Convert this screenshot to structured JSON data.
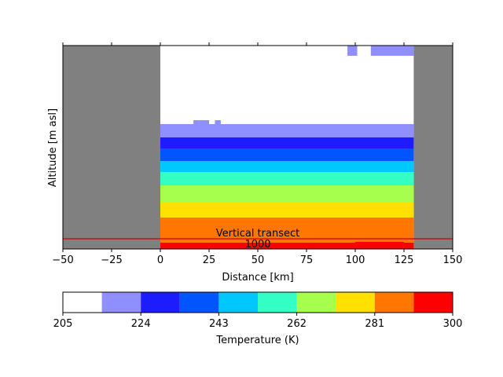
{
  "chart_data": [
    {
      "type": "heatmap",
      "title": "",
      "xlabel": "Distance [km]",
      "ylabel": "Altitude [m asl]",
      "xlim": [
        -50,
        150
      ],
      "x_ticks": [
        "−50",
        "−25",
        "0",
        "25",
        "50",
        "75",
        "100",
        "125",
        "150"
      ],
      "x_tick_values": [
        -50,
        -25,
        0,
        25,
        50,
        75,
        100,
        125,
        150
      ],
      "y_ticks": [],
      "data_extent_km": [
        0,
        130
      ],
      "nodata_color": "#808080",
      "bands_bottom_to_top": [
        {
          "temperature_range_K": [
            290.5,
            300
          ],
          "color": "#ff0000",
          "note": "thin surface strip"
        },
        {
          "temperature_range_K": [
            281,
            290.5
          ],
          "color": "#ff7700"
        },
        {
          "temperature_range_K": [
            271.5,
            281
          ],
          "color": "#ffe000"
        },
        {
          "temperature_range_K": [
            262,
            271.5
          ],
          "color": "#a6ff4d"
        },
        {
          "temperature_range_K": [
            252.5,
            262
          ],
          "color": "#33ffc4"
        },
        {
          "temperature_range_K": [
            243,
            252.5
          ],
          "color": "#00c8ff"
        },
        {
          "temperature_range_K": [
            233.5,
            243
          ],
          "color": "#0055ff"
        },
        {
          "temperature_range_K": [
            224,
            233.5
          ],
          "color": "#1c1cff"
        },
        {
          "temperature_range_K": [
            214.5,
            224
          ],
          "color": "#8f8fff"
        },
        {
          "temperature_range_K": [
            205,
            214.5
          ],
          "color": "#ffffff"
        }
      ],
      "upper_patches": [
        {
          "x_km": [
            96,
            101
          ],
          "temperature_range_K": [
            214.5,
            224
          ],
          "color": "#8f8fff"
        },
        {
          "x_km": [
            108,
            130
          ],
          "temperature_range_K": [
            214.5,
            224
          ],
          "color": "#8f8fff"
        }
      ],
      "annotations": [
        {
          "text": "Vertical transect",
          "color": "#000000"
        },
        {
          "text": "1000",
          "color": "#000000"
        }
      ],
      "transect_line_color": "#cc0000"
    },
    {
      "type": "colorbar",
      "label": "Temperature (K)",
      "range": [
        205,
        300
      ],
      "tick_labels": [
        "205",
        "224",
        "243",
        "262",
        "281",
        "300"
      ],
      "tick_values": [
        205,
        224,
        243,
        262,
        281,
        300
      ],
      "boundaries": [
        205,
        214.5,
        224,
        233.5,
        243,
        252.5,
        262,
        271.5,
        281,
        290.5,
        300
      ],
      "colors": [
        "#ffffff",
        "#8f8fff",
        "#1c1cff",
        "#0055ff",
        "#00c8ff",
        "#33ffc4",
        "#a6ff4d",
        "#ffe000",
        "#ff7700",
        "#ff0000"
      ]
    }
  ]
}
